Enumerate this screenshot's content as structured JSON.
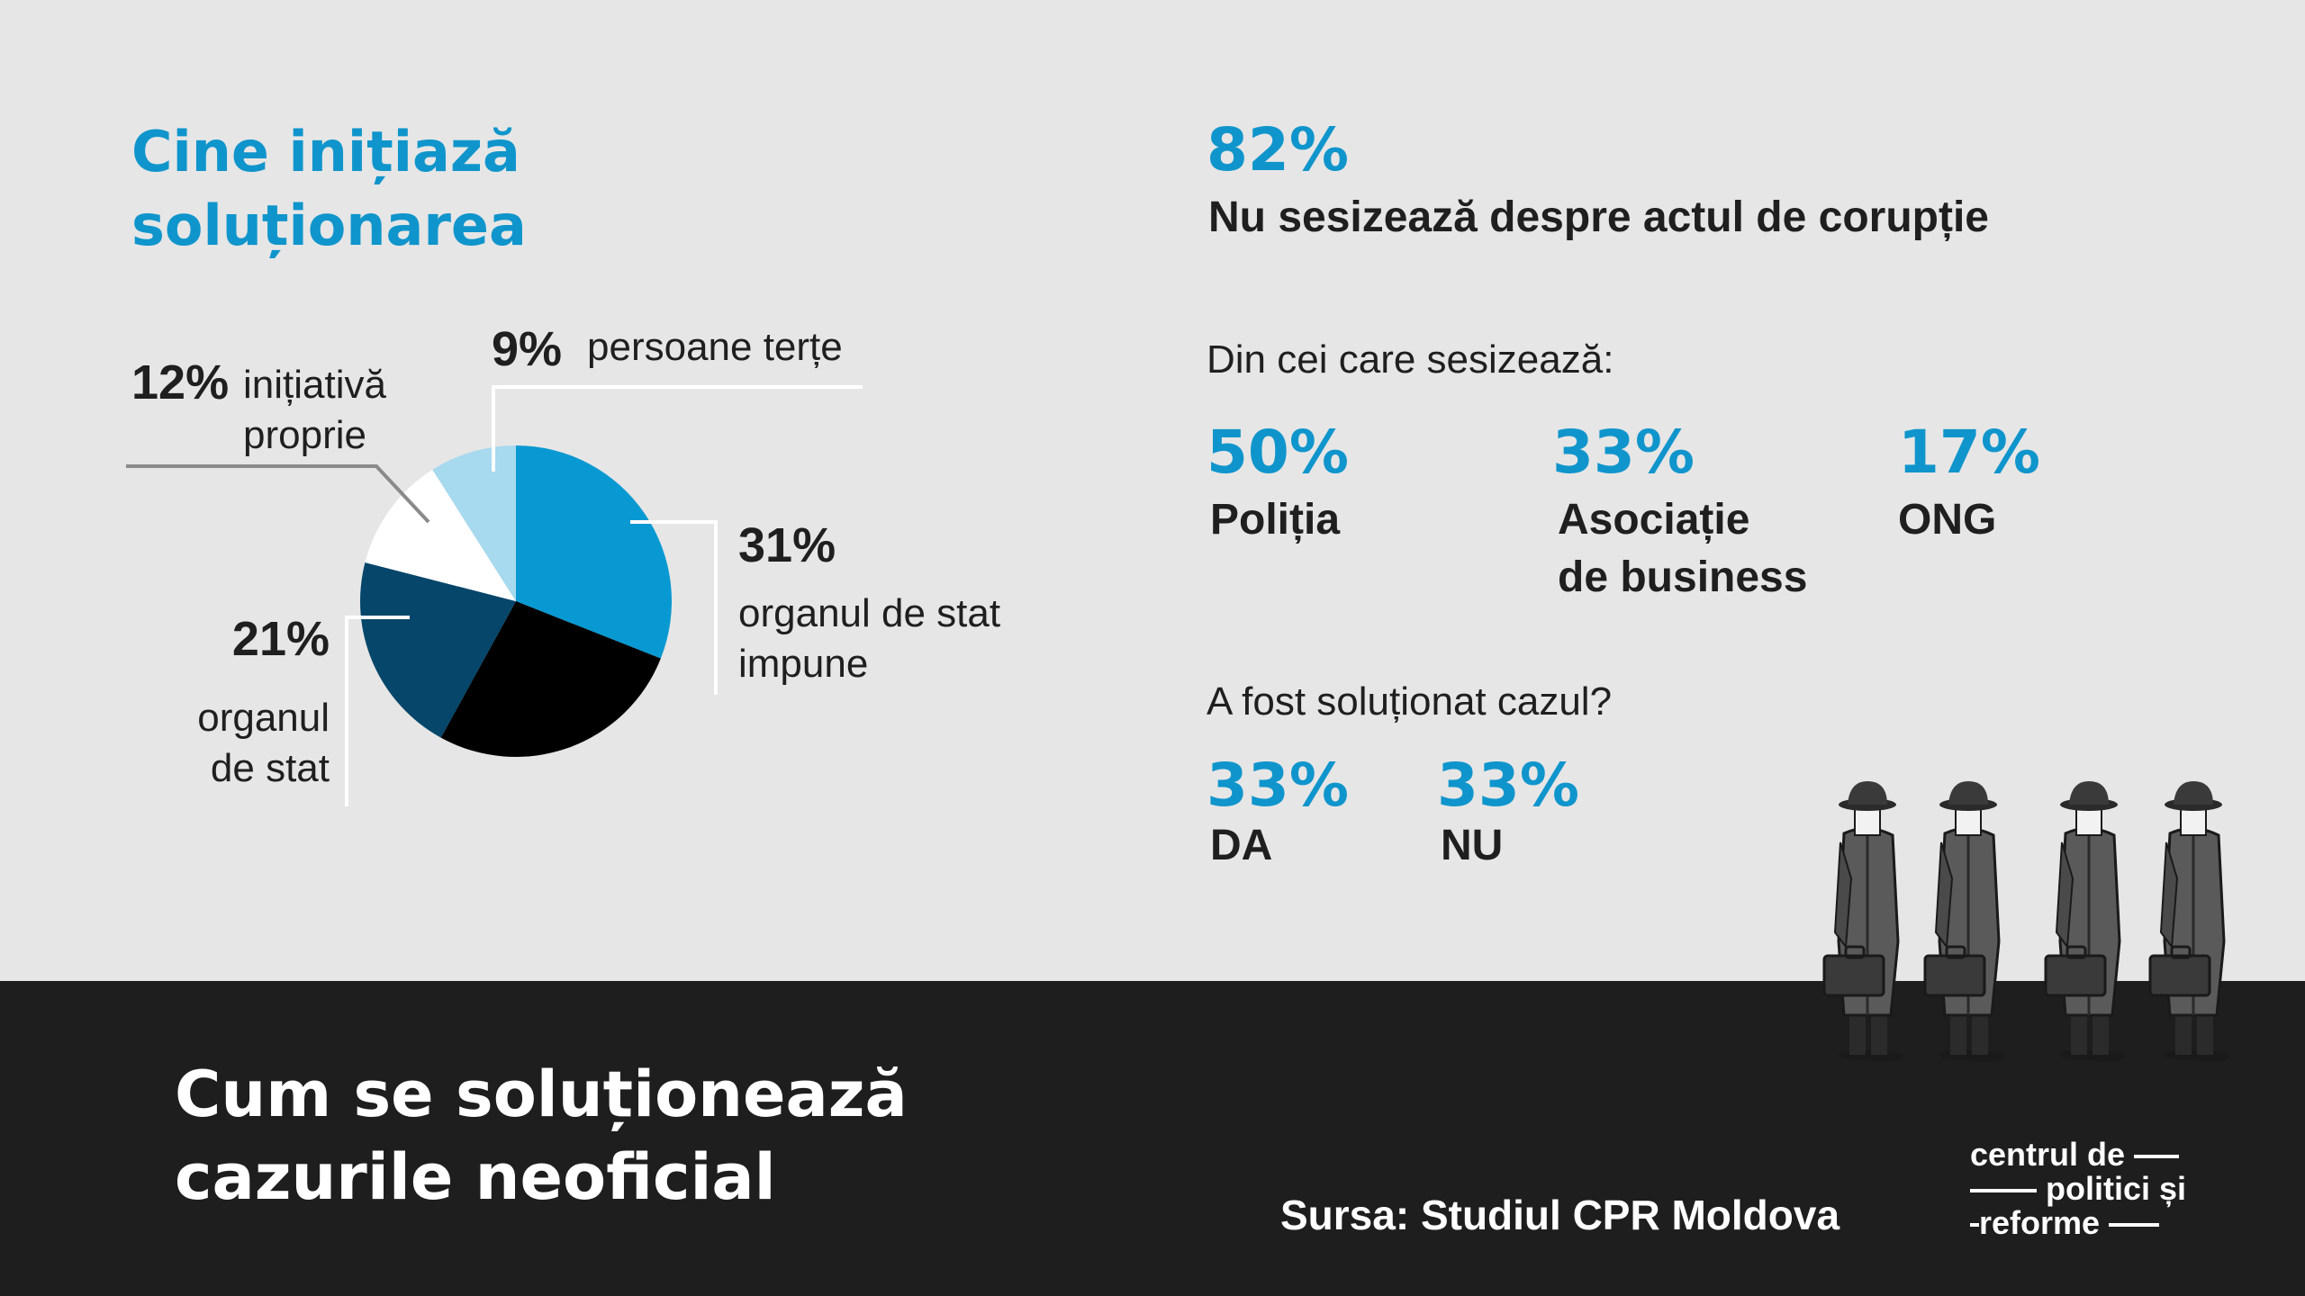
{
  "colors": {
    "background": "#e6e6e6",
    "accent_blue": "#0f95cc",
    "dark_band": "#1e1e1e",
    "slice_blue": "#0899d2",
    "slice_black": "#000000",
    "slice_navy": "#05466a",
    "slice_white": "#ffffff",
    "slice_lightblue": "#a7d9ef"
  },
  "left": {
    "title_line1": "Cine inițiază",
    "title_line2": "soluționarea"
  },
  "chart_data": {
    "type": "pie",
    "slices": [
      {
        "pct_label": "31%",
        "value": 31,
        "label_lines": [
          "organul de stat",
          "impune"
        ],
        "color": "#0899d2"
      },
      {
        "pct_label": "",
        "value": 27,
        "label_lines": [],
        "color": "#000000"
      },
      {
        "pct_label": "21%",
        "value": 21,
        "label_lines": [
          "organul",
          "de stat"
        ],
        "color": "#05466a"
      },
      {
        "pct_label": "12%",
        "value": 12,
        "label_lines": [
          "inițiativă",
          "proprie"
        ],
        "color": "#ffffff"
      },
      {
        "pct_label": "9%",
        "value": 9,
        "label_lines": [
          "persoane terțe"
        ],
        "color": "#a7d9ef"
      }
    ]
  },
  "right": {
    "main_pct": "82%",
    "main_text": "Nu sesizează despre actul de corupție",
    "subhead1": "Din cei care sesizează:",
    "reporters": [
      {
        "pct": "50%",
        "label_line1": "Poliția",
        "label_line2": ""
      },
      {
        "pct": "33%",
        "label_line1": "Asociație",
        "label_line2": "de business"
      },
      {
        "pct": "17%",
        "label_line1": "ONG",
        "label_line2": ""
      }
    ],
    "subhead2": "A fost soluționat cazul?",
    "resolved": [
      {
        "pct": "33%",
        "label": "DA"
      },
      {
        "pct": "33%",
        "label": "NU"
      }
    ]
  },
  "footer": {
    "title_line1": "Cum se soluționează",
    "title_line2": "cazurile neoficial",
    "source": "Sursa: Studiul CPR Moldova",
    "logo_line1": "centrul de",
    "logo_line2": "politici și",
    "logo_line3": "reforme"
  },
  "illustration": {
    "icon": "businessmen-with-briefcases-icon"
  }
}
